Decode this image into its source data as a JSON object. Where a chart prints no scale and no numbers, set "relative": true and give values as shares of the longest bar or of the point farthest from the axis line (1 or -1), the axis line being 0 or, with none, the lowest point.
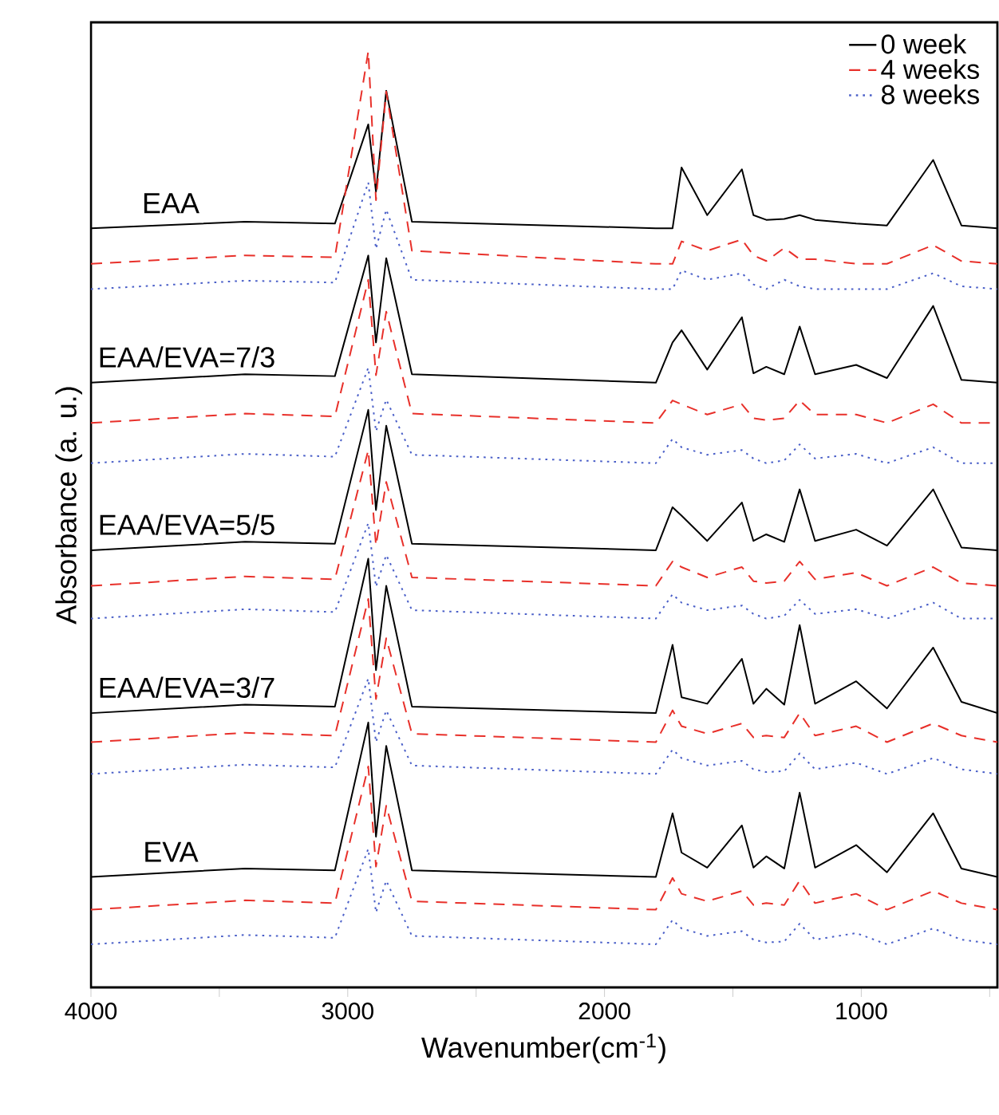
{
  "chart_data": {
    "type": "line",
    "relative": true,
    "xlabel": "Wavenumber(cm$^{-1}$)",
    "ylabel": "Absorbance (a. u.)",
    "xlim": [
      4000,
      470
    ],
    "xticks": [
      4000,
      {
        "value": 3500,
        "label": null
      },
      3000,
      {
        "value": 2500,
        "label": null
      },
      2000,
      {
        "value": 1500,
        "label": null
      },
      1000,
      {
        "value": 500,
        "label": null
      }
    ],
    "tick_labels": "x",
    "legend": "top right",
    "marker": "none",
    "x": [
      4000,
      3400,
      3050,
      2920,
      2890,
      2850,
      2750,
      1800,
      1735,
      1700,
      1600,
      1465,
      1420,
      1370,
      1300,
      1240,
      1180,
      1020,
      900,
      720,
      610,
      470
    ],
    "series": [
      {
        "name": "0 week",
        "color": "#000000",
        "line_style": "solid",
        "values": [
          0.811,
          0.818,
          0.816,
          0.922,
          0.85,
          0.958,
          0.818,
          0.811,
          0.811,
          0.876,
          0.825,
          0.874,
          0.825,
          0.82,
          0.821,
          0.825,
          0.82,
          0.816,
          0.814,
          0.884,
          0.814,
          0.811
        ]
      },
      {
        "name": "4 weeks",
        "color": "#e8302a",
        "line_style": "dashed",
        "values": [
          0.773,
          0.782,
          0.78,
          1.0,
          0.841,
          0.957,
          0.787,
          0.773,
          0.773,
          0.797,
          0.787,
          0.799,
          0.782,
          0.776,
          0.79,
          0.778,
          0.778,
          0.773,
          0.773,
          0.793,
          0.776,
          0.773
        ]
      },
      {
        "name": "8 weeks",
        "color": "#4a5fc8",
        "line_style": "dotted",
        "values": [
          0.746,
          0.755,
          0.753,
          0.86,
          0.789,
          0.831,
          0.756,
          0.746,
          0.746,
          0.766,
          0.756,
          0.763,
          0.751,
          0.746,
          0.756,
          0.749,
          0.746,
          0.746,
          0.746,
          0.763,
          0.749,
          0.746
        ]
      },
      {
        "color": "#000000",
        "line_style": "solid",
        "values": [
          0.646,
          0.655,
          0.653,
          0.782,
          0.689,
          0.779,
          0.655,
          0.646,
          0.689,
          0.702,
          0.66,
          0.716,
          0.656,
          0.663,
          0.655,
          0.706,
          0.655,
          0.665,
          0.651,
          0.728,
          0.649,
          0.646
        ]
      },
      {
        "color": "#e8302a",
        "line_style": "dashed",
        "values": [
          0.603,
          0.613,
          0.61,
          0.756,
          0.654,
          0.722,
          0.613,
          0.603,
          0.627,
          0.623,
          0.612,
          0.623,
          0.608,
          0.606,
          0.608,
          0.627,
          0.612,
          0.612,
          0.603,
          0.623,
          0.603,
          0.603
        ]
      },
      {
        "color": "#4a5fc8",
        "line_style": "dotted",
        "values": [
          0.56,
          0.57,
          0.567,
          0.662,
          0.594,
          0.628,
          0.569,
          0.56,
          0.586,
          0.577,
          0.569,
          0.574,
          0.565,
          0.56,
          0.563,
          0.58,
          0.565,
          0.57,
          0.56,
          0.577,
          0.56,
          0.56
        ]
      },
      {
        "color": "#000000",
        "line_style": "solid",
        "values": [
          0.467,
          0.476,
          0.474,
          0.617,
          0.51,
          0.6,
          0.474,
          0.467,
          0.513,
          0.504,
          0.477,
          0.518,
          0.477,
          0.484,
          0.476,
          0.532,
          0.477,
          0.489,
          0.472,
          0.532,
          0.47,
          0.467
        ]
      },
      {
        "color": "#e8302a",
        "line_style": "dashed",
        "values": [
          0.429,
          0.439,
          0.436,
          0.574,
          0.472,
          0.54,
          0.438,
          0.429,
          0.455,
          0.449,
          0.438,
          0.449,
          0.434,
          0.432,
          0.434,
          0.455,
          0.436,
          0.443,
          0.429,
          0.449,
          0.432,
          0.429
        ]
      },
      {
        "color": "#4a5fc8",
        "line_style": "dotted",
        "values": [
          0.394,
          0.404,
          0.401,
          0.496,
          0.428,
          0.462,
          0.403,
          0.394,
          0.42,
          0.411,
          0.403,
          0.408,
          0.399,
          0.394,
          0.397,
          0.414,
          0.399,
          0.404,
          0.394,
          0.411,
          0.394,
          0.394
        ]
      },
      {
        "color": "#000000",
        "line_style": "solid",
        "values": [
          0.293,
          0.302,
          0.3,
          0.458,
          0.339,
          0.429,
          0.3,
          0.293,
          0.366,
          0.31,
          0.303,
          0.351,
          0.303,
          0.319,
          0.302,
          0.387,
          0.303,
          0.327,
          0.298,
          0.363,
          0.305,
          0.293
        ]
      },
      {
        "color": "#e8302a",
        "line_style": "dashed",
        "values": [
          0.262,
          0.272,
          0.269,
          0.415,
          0.308,
          0.373,
          0.271,
          0.262,
          0.296,
          0.279,
          0.271,
          0.282,
          0.267,
          0.269,
          0.267,
          0.293,
          0.269,
          0.279,
          0.262,
          0.282,
          0.269,
          0.262
        ]
      },
      {
        "color": "#4a5fc8",
        "line_style": "dotted",
        "values": [
          0.228,
          0.238,
          0.235,
          0.33,
          0.262,
          0.296,
          0.237,
          0.228,
          0.254,
          0.245,
          0.237,
          0.242,
          0.233,
          0.23,
          0.231,
          0.25,
          0.233,
          0.24,
          0.228,
          0.245,
          0.233,
          0.228
        ]
      },
      {
        "color": "#000000",
        "line_style": "solid",
        "values": [
          0.118,
          0.127,
          0.125,
          0.283,
          0.161,
          0.258,
          0.125,
          0.118,
          0.186,
          0.144,
          0.128,
          0.173,
          0.128,
          0.14,
          0.127,
          0.208,
          0.128,
          0.152,
          0.123,
          0.186,
          0.127,
          0.118
        ]
      },
      {
        "color": "#e8302a",
        "line_style": "dashed",
        "values": [
          0.083,
          0.093,
          0.09,
          0.236,
          0.129,
          0.194,
          0.092,
          0.083,
          0.117,
          0.1,
          0.092,
          0.103,
          0.088,
          0.09,
          0.088,
          0.114,
          0.09,
          0.1,
          0.083,
          0.103,
          0.09,
          0.083
        ]
      },
      {
        "color": "#4a5fc8",
        "line_style": "dotted",
        "values": [
          0.046,
          0.056,
          0.053,
          0.148,
          0.08,
          0.114,
          0.055,
          0.046,
          0.072,
          0.063,
          0.055,
          0.06,
          0.051,
          0.048,
          0.049,
          0.068,
          0.051,
          0.058,
          0.046,
          0.063,
          0.051,
          0.046
        ]
      }
    ],
    "annotations": [
      "EAA",
      "EAA/EVA=7/3",
      "EAA/EVA=5/5",
      "EAA/EVA=3/7",
      "EVA"
    ]
  }
}
